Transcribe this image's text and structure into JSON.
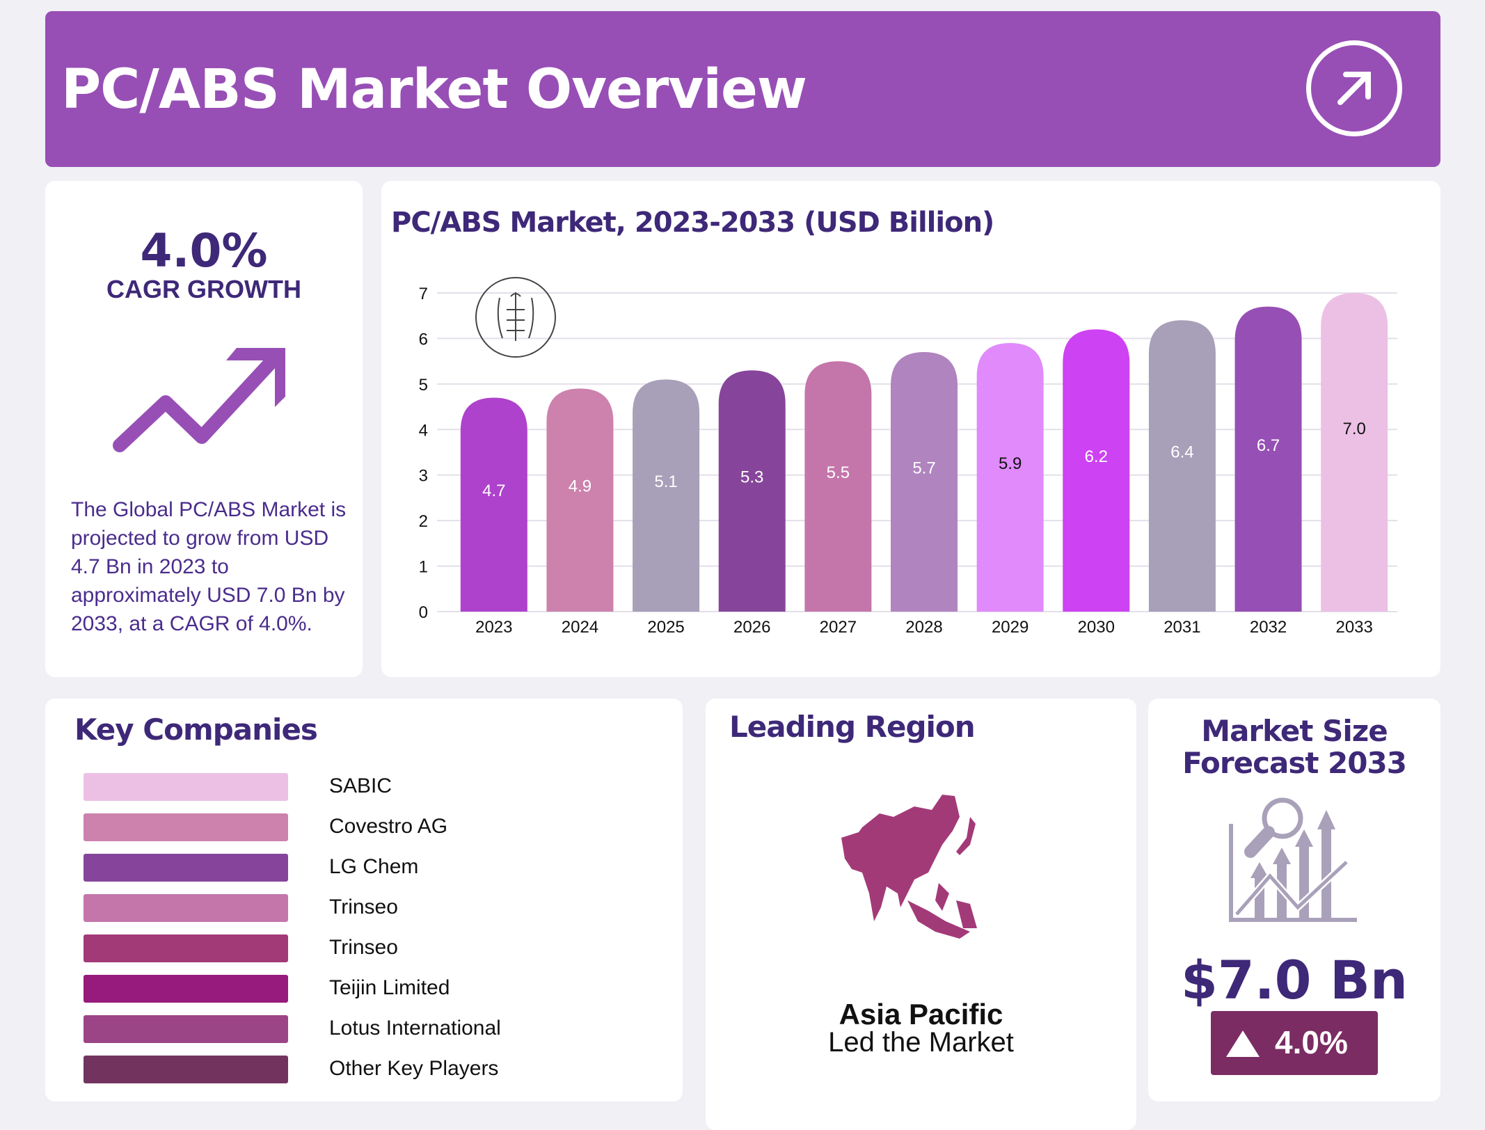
{
  "header": {
    "title": "PC/ABS Market Overview",
    "icon": "arrow-up-right-circle-icon"
  },
  "cagr": {
    "value": "4.0%",
    "label": "CAGR GROWTH",
    "description": "The Global PC/ABS Market is projected to grow from USD 4.7 Bn in 2023 to approximately USD 7.0 Bn by 2033, at a CAGR of 4.0%.",
    "icon": "trend-up-arrow-icon",
    "accent": "#974fb5"
  },
  "chart_data": {
    "type": "bar",
    "title": "PC/ABS Market, 2023-2033 (USD Billion)",
    "xlabel": "",
    "ylabel": "",
    "ylim": [
      0,
      7
    ],
    "yticks": [
      0,
      1,
      2,
      3,
      4,
      5,
      6,
      7
    ],
    "grid": true,
    "categories": [
      "2023",
      "2024",
      "2025",
      "2026",
      "2027",
      "2028",
      "2029",
      "2030",
      "2031",
      "2032",
      "2033"
    ],
    "values": [
      4.7,
      4.9,
      5.1,
      5.3,
      5.5,
      5.7,
      5.9,
      6.2,
      6.4,
      6.7,
      7.0
    ],
    "labels": [
      "4.7",
      "4.9",
      "5.1",
      "5.3",
      "5.5",
      "5.7",
      "5.9",
      "6.2",
      "6.4",
      "6.7",
      "7.0"
    ],
    "colors": [
      "#ae42cc",
      "#cc82ad",
      "#a89fb8",
      "#86459a",
      "#c476aa",
      "#b084bf",
      "#e08afb",
      "#cd42f2",
      "#a89fb8",
      "#964fb4",
      "#ecc0e4"
    ],
    "label_colors": [
      "#fff",
      "#fff",
      "#fff",
      "#fff",
      "#fff",
      "#fff",
      "#111",
      "#fff",
      "#fff",
      "#fff",
      "#111"
    ]
  },
  "companies": {
    "title": "Key Companies",
    "items": [
      {
        "name": "SABIC",
        "color": "#ecc0e4"
      },
      {
        "name": "Covestro AG",
        "color": "#cc82ad"
      },
      {
        "name": "LG Chem",
        "color": "#86459a"
      },
      {
        "name": "Trinseo",
        "color": "#c476aa"
      },
      {
        "name": "Trinseo",
        "color": "#a33a78"
      },
      {
        "name": "Teijin Limited",
        "color": "#961b7c"
      },
      {
        "name": "Lotus International",
        "color": "#9b4586"
      },
      {
        "name": "Other Key Players",
        "color": "#72345f"
      }
    ]
  },
  "region": {
    "title": "Leading Region",
    "name": "Asia Pacific",
    "subtitle": "Led the Market",
    "map_color": "#a33a78"
  },
  "market_size": {
    "title": "Market Size Forecast 2033",
    "value": "$7.0 Bn",
    "growth": "4.0%",
    "icon": "growth-chart-magnifier-icon"
  }
}
